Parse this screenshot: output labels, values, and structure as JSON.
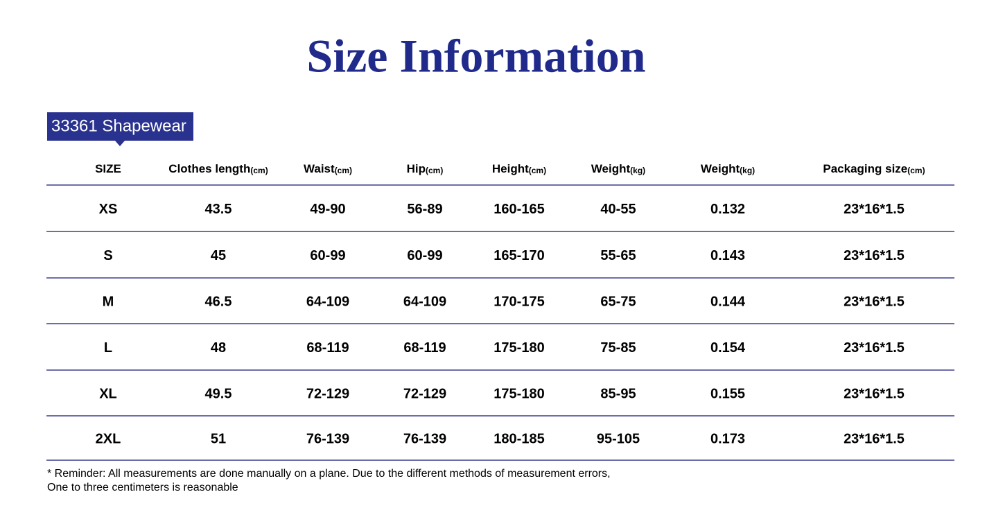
{
  "header": {
    "title": "Size Information",
    "badge": "33361 Shapewear"
  },
  "table": {
    "columns": [
      {
        "label": "SIZE"
      },
      {
        "label": "Clothes length",
        "unit": "(cm)"
      },
      {
        "label": "Waist",
        "unit": "(cm)"
      },
      {
        "label": "Hip",
        "unit": "(cm)"
      },
      {
        "label": "Height",
        "unit": "(cm)"
      },
      {
        "label": "Weight",
        "unit": "(kg)"
      },
      {
        "label": "Weight",
        "unit": "(kg)"
      },
      {
        "label": "Packaging size",
        "unit": "(cm)"
      }
    ],
    "rows": [
      [
        "XS",
        "43.5",
        "49-90",
        "56-89",
        "160-165",
        "40-55",
        "0.132",
        "23*16*1.5"
      ],
      [
        "S",
        "45",
        "60-99",
        "60-99",
        "165-170",
        "55-65",
        "0.143",
        "23*16*1.5"
      ],
      [
        "M",
        "46.5",
        "64-109",
        "64-109",
        "170-175",
        "65-75",
        "0.144",
        "23*16*1.5"
      ],
      [
        "L",
        "48",
        "68-119",
        "68-119",
        "175-180",
        "75-85",
        "0.154",
        "23*16*1.5"
      ],
      [
        "XL",
        "49.5",
        "72-129",
        "72-129",
        "175-180",
        "85-95",
        "0.155",
        "23*16*1.5"
      ],
      [
        "2XL",
        "51",
        "76-139",
        "76-139",
        "180-185",
        "95-105",
        "0.173",
        "23*16*1.5"
      ]
    ]
  },
  "footer": {
    "lines": [
      "* Reminder: All measurements are done manually on a plane. Due to the different methods of measurement errors,",
      "One to three centimeters is reasonable"
    ]
  }
}
